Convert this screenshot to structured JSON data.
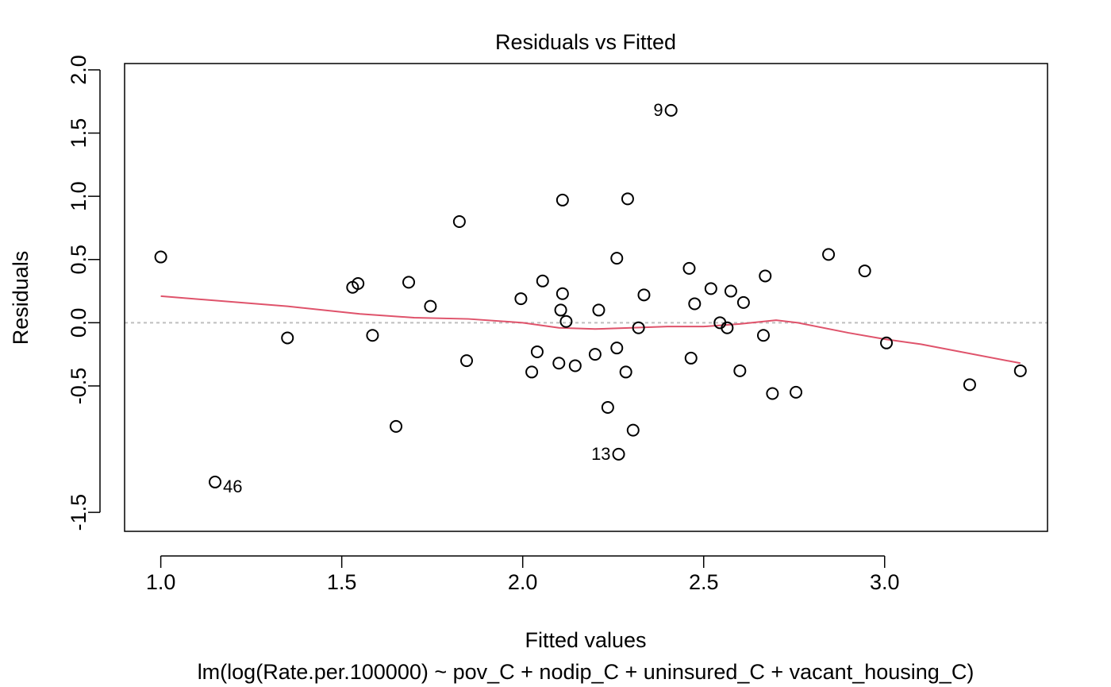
{
  "chart_data": {
    "type": "scatter",
    "title": "Residuals vs Fitted",
    "xlabel": "Fitted values",
    "subtitle": "lm(log(Rate.per.100000) ~ pov_C + nodip_C + uninsured_C + vacant_housing_C)",
    "ylabel": "Residuals",
    "xlim": [
      0.9,
      3.45
    ],
    "ylim": [
      -1.65,
      2.05
    ],
    "x_ticks": [
      1.0,
      1.5,
      2.0,
      2.5,
      3.0
    ],
    "y_ticks": [
      -1.5,
      -0.5,
      0.0,
      0.5,
      1.0,
      1.5,
      2.0
    ],
    "x_tick_labels": [
      "1.0",
      "1.5",
      "2.0",
      "2.5",
      "3.0"
    ],
    "y_tick_labels": [
      "-1.5",
      "-0.5",
      "0.0",
      "0.5",
      "1.0",
      "1.5",
      "2.0"
    ],
    "grid": false,
    "point_style": "open-circle",
    "points": [
      {
        "x": 1.0,
        "y": 0.52
      },
      {
        "x": 1.15,
        "y": -1.26,
        "label": "46"
      },
      {
        "x": 1.35,
        "y": -0.12
      },
      {
        "x": 1.53,
        "y": 0.28
      },
      {
        "x": 1.545,
        "y": 0.31
      },
      {
        "x": 1.585,
        "y": -0.1
      },
      {
        "x": 1.65,
        "y": -0.82
      },
      {
        "x": 1.685,
        "y": 0.32
      },
      {
        "x": 1.745,
        "y": 0.13
      },
      {
        "x": 1.825,
        "y": 0.8
      },
      {
        "x": 1.845,
        "y": -0.3
      },
      {
        "x": 1.995,
        "y": 0.19
      },
      {
        "x": 2.025,
        "y": -0.39
      },
      {
        "x": 2.04,
        "y": -0.23
      },
      {
        "x": 2.055,
        "y": 0.33
      },
      {
        "x": 2.1,
        "y": -0.32
      },
      {
        "x": 2.105,
        "y": 0.1
      },
      {
        "x": 2.11,
        "y": 0.23
      },
      {
        "x": 2.11,
        "y": 0.97
      },
      {
        "x": 2.12,
        "y": 0.01
      },
      {
        "x": 2.145,
        "y": -0.34
      },
      {
        "x": 2.2,
        "y": -0.25
      },
      {
        "x": 2.21,
        "y": 0.1
      },
      {
        "x": 2.235,
        "y": -0.67
      },
      {
        "x": 2.26,
        "y": 0.51
      },
      {
        "x": 2.26,
        "y": -0.2
      },
      {
        "x": 2.265,
        "y": -1.04,
        "label": "13"
      },
      {
        "x": 2.285,
        "y": -0.39
      },
      {
        "x": 2.29,
        "y": 0.98
      },
      {
        "x": 2.305,
        "y": -0.85
      },
      {
        "x": 2.32,
        "y": -0.04
      },
      {
        "x": 2.335,
        "y": 0.22
      },
      {
        "x": 2.41,
        "y": 1.68,
        "label": "9"
      },
      {
        "x": 2.46,
        "y": 0.43
      },
      {
        "x": 2.465,
        "y": -0.28
      },
      {
        "x": 2.475,
        "y": 0.15
      },
      {
        "x": 2.52,
        "y": 0.27
      },
      {
        "x": 2.545,
        "y": 0.0
      },
      {
        "x": 2.565,
        "y": -0.04
      },
      {
        "x": 2.575,
        "y": 0.25
      },
      {
        "x": 2.6,
        "y": -0.38
      },
      {
        "x": 2.61,
        "y": 0.16
      },
      {
        "x": 2.665,
        "y": -0.1
      },
      {
        "x": 2.67,
        "y": 0.37
      },
      {
        "x": 2.69,
        "y": -0.56
      },
      {
        "x": 2.755,
        "y": -0.55
      },
      {
        "x": 2.845,
        "y": 0.54
      },
      {
        "x": 2.945,
        "y": 0.41
      },
      {
        "x": 3.005,
        "y": -0.16
      },
      {
        "x": 3.235,
        "y": -0.49
      },
      {
        "x": 3.375,
        "y": -0.38
      }
    ],
    "smoother": {
      "color": "#DF536B",
      "x": [
        1.0,
        1.35,
        1.55,
        1.7,
        1.85,
        2.0,
        2.1,
        2.2,
        2.3,
        2.4,
        2.5,
        2.6,
        2.7,
        2.76,
        2.9,
        3.0,
        3.1,
        3.375
      ],
      "y": [
        0.21,
        0.13,
        0.07,
        0.04,
        0.03,
        0.0,
        -0.04,
        -0.05,
        -0.04,
        -0.03,
        -0.03,
        -0.01,
        0.02,
        0.0,
        -0.08,
        -0.13,
        -0.17,
        -0.32
      ]
    },
    "reference_line": {
      "y": 0,
      "style": "dotted",
      "color": "#BEBEBE"
    }
  }
}
